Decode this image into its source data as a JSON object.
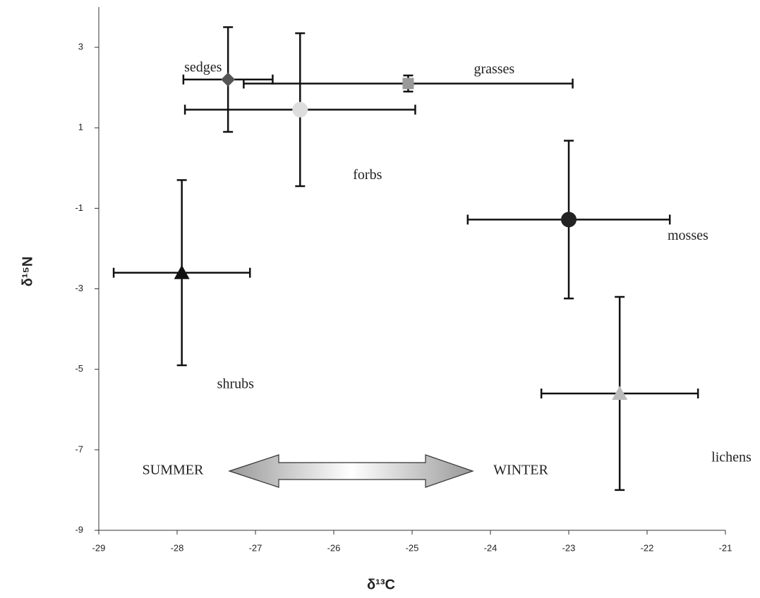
{
  "chart_data": {
    "type": "scatter",
    "x_label": "δ¹³C",
    "y_label": "δ¹⁵N",
    "xlim": [
      -29,
      -21
    ],
    "xticks": [
      -29,
      -28,
      -27,
      -26,
      -25,
      -24,
      -23,
      -22,
      -21
    ],
    "ylim": [
      -9,
      4
    ],
    "yticks": [
      -9,
      -7,
      -5,
      -3,
      -1,
      1,
      3
    ],
    "series": [
      {
        "name": "sedges",
        "color": "#555555",
        "marker": "diamond",
        "x": -27.35,
        "y": 2.2,
        "xerr": 0.57,
        "yerr": 1.3
      },
      {
        "name": "grasses",
        "color": "#999999",
        "marker": "square",
        "x": -25.05,
        "y": 2.1,
        "xerr": 2.1,
        "yerr": 0.2
      },
      {
        "name": "forbs",
        "color": "#dddddd",
        "marker": "circle",
        "x": -26.43,
        "y": 1.45,
        "xerr": 1.47,
        "yerr": 1.9
      },
      {
        "name": "mosses",
        "color": "#222222",
        "marker": "circle",
        "x": -23.0,
        "y": -1.28,
        "xerr": 1.29,
        "yerr": 1.96
      },
      {
        "name": "shrubs",
        "color": "#111111",
        "marker": "triangle",
        "x": -27.94,
        "y": -2.6,
        "xerr": 0.87,
        "yerr": 2.3
      },
      {
        "name": "lichens",
        "color": "#bbbbbb",
        "marker": "triangle",
        "x": -22.35,
        "y": -5.6,
        "xerr": 1.0,
        "yerr": 2.4
      }
    ],
    "annotations": [
      "SUMMER",
      "WINTER"
    ]
  }
}
